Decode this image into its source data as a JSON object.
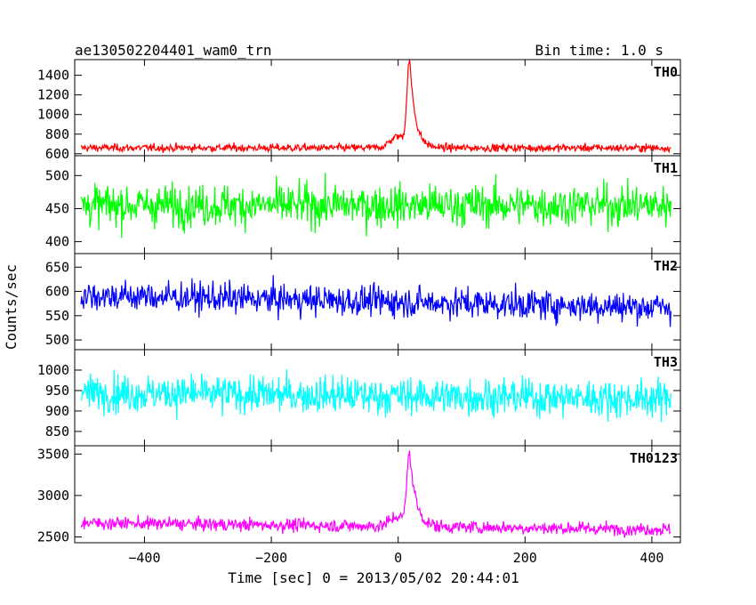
{
  "header": {
    "title": "ae130502204401_wam0_trn",
    "bin_time": "Bin time: 1.0 s"
  },
  "chart_data": {
    "type": "line",
    "title": "ae130502204401_wam0_trn",
    "xlabel": "Time [sec] 0 = 2013/05/02 20:44:01",
    "ylabel": "Counts/sec",
    "xlim": [
      -510,
      445
    ],
    "x_ticks": [
      -400,
      -200,
      0,
      200,
      400
    ],
    "x_tick_labels": [
      "−400",
      "−200",
      "0",
      "200",
      "400"
    ],
    "x_range": [
      -500,
      430
    ],
    "grid": false,
    "panels": [
      {
        "name": "TH0",
        "color": "#ff0000",
        "ylim": [
          580,
          1560
        ],
        "y_ticks": [
          600,
          800,
          1000,
          1200,
          1400
        ],
        "y_tick_labels": [
          "600",
          "800",
          "1000",
          "1200",
          "1400"
        ],
        "baseline": 660,
        "noise": 28,
        "trend": 0,
        "peak": {
          "t": 18,
          "amp": 870,
          "rise": 4,
          "decay": 9,
          "wing_amp": 120,
          "wing_t": 0,
          "wing_w": 12
        }
      },
      {
        "name": "TH1",
        "color": "#00ff00",
        "ylim": [
          382,
          530
        ],
        "y_ticks": [
          400,
          450,
          500
        ],
        "y_tick_labels": [
          "400",
          "450",
          "500"
        ],
        "baseline": 455,
        "noise": 22,
        "trend": 0,
        "peak": null
      },
      {
        "name": "TH2",
        "color": "#0000ff",
        "ylim": [
          480,
          678
        ],
        "y_ticks": [
          500,
          550,
          600,
          650
        ],
        "y_tick_labels": [
          "500",
          "550",
          "600",
          "650"
        ],
        "baseline": 592,
        "noise": 22,
        "trend": -25,
        "peak": null
      },
      {
        "name": "TH3",
        "color": "#00ffff",
        "ylim": [
          815,
          1050
        ],
        "y_ticks": [
          850,
          900,
          950,
          1000
        ],
        "y_tick_labels": [
          "850",
          "900",
          "950",
          "1000"
        ],
        "baseline": 945,
        "noise": 32,
        "trend": -15,
        "peak": null
      },
      {
        "name": "TH0123",
        "color": "#ff00ff",
        "ylim": [
          2430,
          3600
        ],
        "y_ticks": [
          2500,
          3000,
          3500
        ],
        "y_tick_labels": [
          "2500",
          "3000",
          "3500"
        ],
        "baseline": 2670,
        "noise": 55,
        "trend": -80,
        "peak": {
          "t": 18,
          "amp": 880,
          "rise": 4,
          "decay": 10,
          "wing_amp": 120,
          "wing_t": 0,
          "wing_w": 12
        }
      }
    ]
  }
}
